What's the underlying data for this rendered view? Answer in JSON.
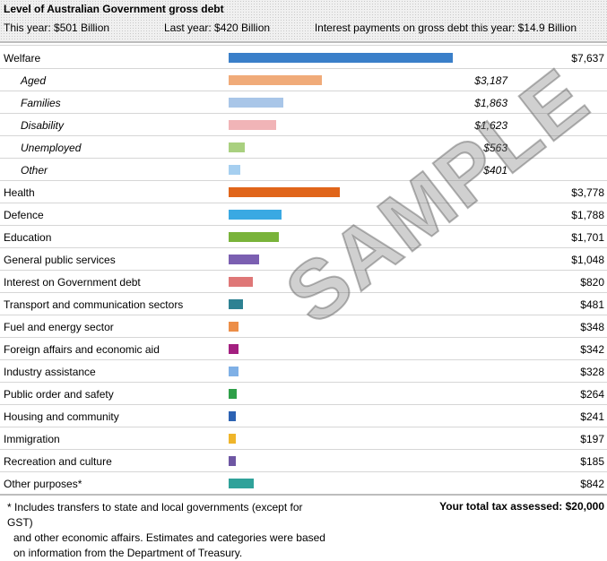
{
  "header": {
    "title": "Level of Australian Government gross debt",
    "this_year": "This year: $501 Billion",
    "last_year": "Last year: $420 Billion",
    "interest": "Interest payments on gross debt this year: $14.9 Billion"
  },
  "chart_data": {
    "type": "bar",
    "orientation": "horizontal",
    "rows": [
      {
        "label": "Welfare",
        "value": 7637,
        "display": "$7,637",
        "color": "#3a7fc9",
        "sub": false
      },
      {
        "label": "Aged",
        "value": 3187,
        "display": "$3,187",
        "color": "#f0ab79",
        "sub": true
      },
      {
        "label": "Families",
        "value": 1863,
        "display": "$1,863",
        "color": "#a9c6e8",
        "sub": true
      },
      {
        "label": "Disability",
        "value": 1623,
        "display": "$1,623",
        "color": "#f1b4b7",
        "sub": true
      },
      {
        "label": "Unemployed",
        "value": 563,
        "display": "$563",
        "color": "#a9d07f",
        "sub": true
      },
      {
        "label": "Other",
        "value": 401,
        "display": "$401",
        "color": "#a6cff0",
        "sub": true
      },
      {
        "label": "Health",
        "value": 3778,
        "display": "$3,778",
        "color": "#e0651a",
        "sub": false
      },
      {
        "label": "Defence",
        "value": 1788,
        "display": "$1,788",
        "color": "#3aa9e3",
        "sub": false
      },
      {
        "label": "Education",
        "value": 1701,
        "display": "$1,701",
        "color": "#79b33a",
        "sub": false
      },
      {
        "label": "General public services",
        "value": 1048,
        "display": "$1,048",
        "color": "#7b5fb1",
        "sub": false
      },
      {
        "label": "Interest on Government debt",
        "value": 820,
        "display": "$820",
        "color": "#df7777",
        "sub": false
      },
      {
        "label": "Transport and communication sectors",
        "value": 481,
        "display": "$481",
        "color": "#2d8192",
        "sub": false
      },
      {
        "label": "Fuel and energy sector",
        "value": 348,
        "display": "$348",
        "color": "#ec8e48",
        "sub": false
      },
      {
        "label": "Foreign affairs and economic aid",
        "value": 342,
        "display": "$342",
        "color": "#a31f80",
        "sub": false
      },
      {
        "label": "Industry assistance",
        "value": 328,
        "display": "$328",
        "color": "#7fb0e6",
        "sub": false
      },
      {
        "label": "Public order and safety",
        "value": 264,
        "display": "$264",
        "color": "#2e9f48",
        "sub": false
      },
      {
        "label": "Housing and community",
        "value": 241,
        "display": "$241",
        "color": "#2c62b3",
        "sub": false
      },
      {
        "label": "Immigration",
        "value": 197,
        "display": "$197",
        "color": "#efb52a",
        "sub": false
      },
      {
        "label": "Recreation and culture",
        "value": 185,
        "display": "$185",
        "color": "#6e56a3",
        "sub": false
      },
      {
        "label": "Other purposes*",
        "value": 842,
        "display": "$842",
        "color": "#2fa29a",
        "sub": false
      }
    ],
    "xlim": [
      0,
      7637
    ],
    "grid": false,
    "legend": "none"
  },
  "footnote": {
    "line1": "* Includes transfers to state and local governments (except for GST)",
    "line2": "and other economic affairs. Estimates and categories were based",
    "line3": "on information from the Department of Treasury."
  },
  "total": "Your total tax assessed: $20,000",
  "watermark": "SAMPLE"
}
